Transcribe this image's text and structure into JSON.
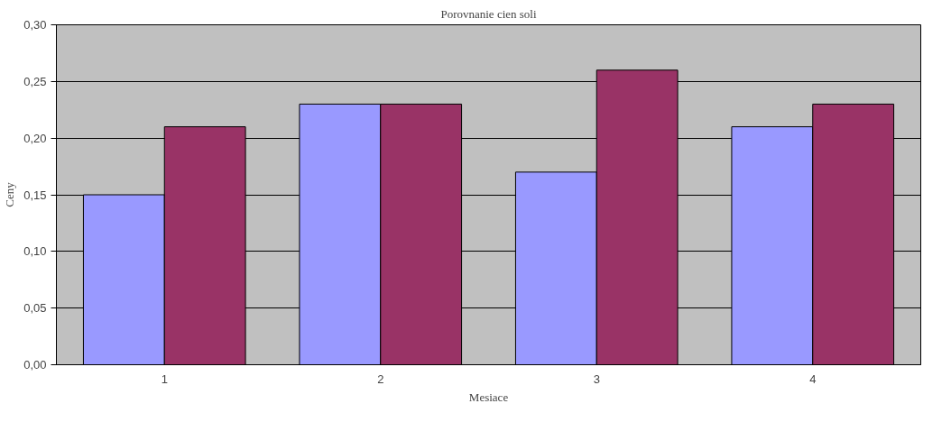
{
  "chart_data": {
    "type": "bar",
    "title": "Porovnanie cien soli",
    "xlabel": "Mesiace",
    "ylabel": "Ceny",
    "categories": [
      "1",
      "2",
      "3",
      "4"
    ],
    "series": [
      {
        "color": "#9999ff",
        "values": [
          0.15,
          0.23,
          0.17,
          0.21
        ]
      },
      {
        "color": "#993366",
        "values": [
          0.21,
          0.23,
          0.26,
          0.23
        ]
      }
    ],
    "ylim": [
      0,
      0.3
    ],
    "yticks": [
      {
        "value": 0,
        "label": "0,00"
      },
      {
        "value": 0.05,
        "label": "0,05"
      },
      {
        "value": 0.1,
        "label": "0,10"
      },
      {
        "value": 0.15,
        "label": "0,15"
      },
      {
        "value": 0.2,
        "label": "0,20"
      },
      {
        "value": 0.25,
        "label": "0,25"
      },
      {
        "value": 0.3,
        "label": "0,30"
      }
    ],
    "grid": "y"
  }
}
